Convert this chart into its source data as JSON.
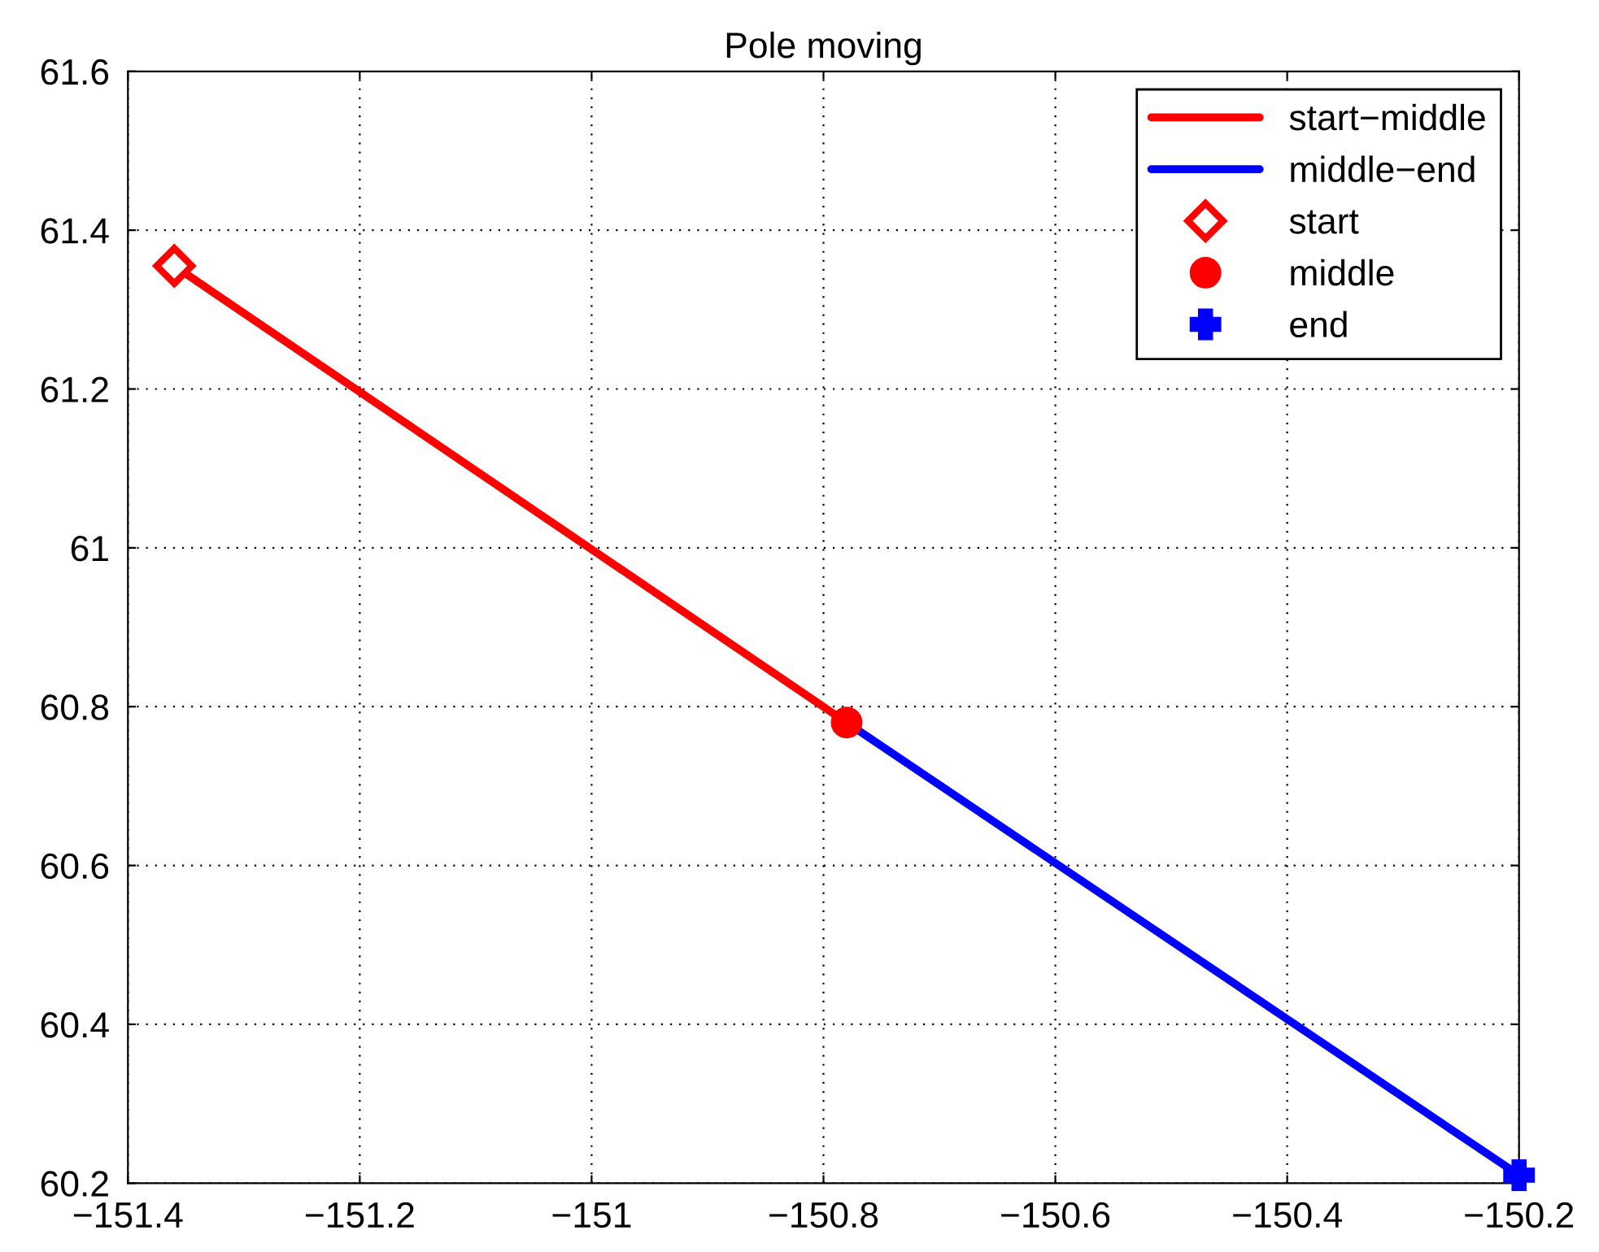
{
  "chart_data": {
    "type": "line",
    "title": "Pole moving",
    "xlim": [
      -151.4,
      -150.2
    ],
    "ylim": [
      60.2,
      61.6
    ],
    "xticks": [
      {
        "value": -151.4,
        "label": "−151.4"
      },
      {
        "value": -151.2,
        "label": "−151.2"
      },
      {
        "value": -151,
        "label": "−151"
      },
      {
        "value": -150.8,
        "label": "−150.8"
      },
      {
        "value": -150.6,
        "label": "−150.6"
      },
      {
        "value": -150.4,
        "label": "−150.4"
      },
      {
        "value": -150.2,
        "label": "−150.2"
      }
    ],
    "yticks": [
      60.2,
      60.4,
      60.6,
      60.8,
      61,
      61.2,
      61.4,
      61.6
    ],
    "grid": true,
    "legend": "top right",
    "series": [
      {
        "name": "start−middle",
        "color": "#ff0000",
        "marker": "none",
        "x": [
          -151.36,
          -150.78
        ],
        "values": [
          61.355,
          60.78
        ]
      },
      {
        "name": "middle−end",
        "color": "#0000ff",
        "marker": "none",
        "x": [
          -150.78,
          -150.2
        ],
        "values": [
          60.78,
          60.21
        ]
      },
      {
        "name": "start",
        "type": "scatter",
        "color": "#ff0000",
        "marker": "diamond",
        "x": [
          -151.36
        ],
        "values": [
          61.355
        ]
      },
      {
        "name": "middle",
        "type": "scatter",
        "color": "#ff0000",
        "marker": "circle",
        "x": [
          -150.78
        ],
        "values": [
          60.78
        ]
      },
      {
        "name": "end",
        "type": "scatter",
        "color": "#0000ff",
        "marker": "cross",
        "x": [
          -150.2
        ],
        "values": [
          60.21
        ]
      }
    ]
  }
}
